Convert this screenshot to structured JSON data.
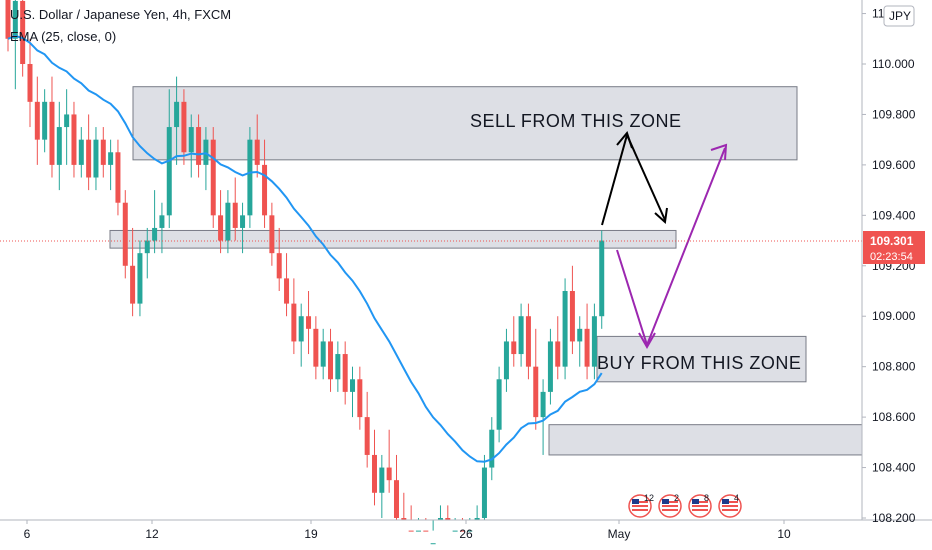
{
  "header": {
    "symbol_line": "U.S. Dollar / Japanese Yen, 4h, FXCM",
    "indicator_line": "EMA (25, close, 0)",
    "currency_badge": "JPY"
  },
  "price_tag": {
    "price": "109.301",
    "countdown": "02:23:54",
    "bg_color": "#ef5350"
  },
  "annotations": {
    "sell_label": "SELL FROM THIS ZONE",
    "buy_label": "BUY FROM THIS ZONE"
  },
  "event_markers": [
    "12",
    "2",
    "8",
    "4"
  ],
  "colors": {
    "up": "#26a69a",
    "down": "#ef5350",
    "ema": "#2196f3",
    "zone_fill": "#d1d4dc",
    "zone_stroke": "#787b86",
    "arrow_black": "#000000",
    "arrow_purple": "#9c27b0"
  },
  "chart_data": {
    "type": "candlestick",
    "title": "U.S. Dollar / Japanese Yen, 4h, FXCM",
    "ylim": [
      108.2,
      110.35
    ],
    "yticks": [
      108.2,
      108.4,
      108.6,
      108.8,
      109.0,
      109.2,
      109.4,
      109.6,
      109.8,
      110.0,
      110.2
    ],
    "ytick_labels": [
      "108.200",
      "108.400",
      "108.600",
      "108.800",
      "109.000",
      "109.200",
      "109.400",
      "109.600",
      "109.800",
      "110.000",
      "110.200"
    ],
    "xticks": [
      "6",
      "12",
      "19",
      "26",
      "May",
      "10"
    ],
    "last_price": 109.301,
    "ohlc": [
      [
        110.3,
        110.4,
        110.05,
        110.1
      ],
      [
        110.1,
        110.35,
        109.9,
        110.25
      ],
      [
        110.25,
        110.35,
        109.95,
        110.0
      ],
      [
        110.0,
        110.1,
        109.75,
        109.85
      ],
      [
        109.85,
        109.95,
        109.6,
        109.7
      ],
      [
        109.7,
        109.9,
        109.65,
        109.85
      ],
      [
        109.85,
        109.95,
        109.55,
        109.6
      ],
      [
        109.6,
        109.85,
        109.5,
        109.75
      ],
      [
        109.75,
        109.9,
        109.6,
        109.8
      ],
      [
        109.8,
        109.85,
        109.55,
        109.6
      ],
      [
        109.6,
        109.75,
        109.55,
        109.7
      ],
      [
        109.7,
        109.8,
        109.5,
        109.55
      ],
      [
        109.55,
        109.75,
        109.5,
        109.7
      ],
      [
        109.7,
        109.75,
        109.55,
        109.6
      ],
      [
        109.6,
        109.7,
        109.5,
        109.65
      ],
      [
        109.65,
        109.7,
        109.4,
        109.45
      ],
      [
        109.45,
        109.5,
        109.15,
        109.2
      ],
      [
        109.2,
        109.35,
        109.0,
        109.05
      ],
      [
        109.05,
        109.3,
        109.0,
        109.25
      ],
      [
        109.25,
        109.35,
        109.15,
        109.3
      ],
      [
        109.3,
        109.5,
        109.25,
        109.35
      ],
      [
        109.35,
        109.45,
        109.25,
        109.4
      ],
      [
        109.4,
        109.9,
        109.35,
        109.75
      ],
      [
        109.75,
        109.95,
        109.6,
        109.85
      ],
      [
        109.85,
        109.9,
        109.6,
        109.65
      ],
      [
        109.65,
        109.8,
        109.55,
        109.75
      ],
      [
        109.75,
        109.8,
        109.55,
        109.6
      ],
      [
        109.6,
        109.75,
        109.5,
        109.7
      ],
      [
        109.7,
        109.75,
        109.35,
        109.4
      ],
      [
        109.4,
        109.5,
        109.25,
        109.3
      ],
      [
        109.3,
        109.5,
        109.25,
        109.45
      ],
      [
        109.45,
        109.55,
        109.3,
        109.35
      ],
      [
        109.35,
        109.45,
        109.25,
        109.4
      ],
      [
        109.4,
        109.75,
        109.35,
        109.7
      ],
      [
        109.7,
        109.8,
        109.55,
        109.6
      ],
      [
        109.6,
        109.7,
        109.35,
        109.4
      ],
      [
        109.4,
        109.45,
        109.2,
        109.25
      ],
      [
        109.25,
        109.35,
        109.1,
        109.15
      ],
      [
        109.15,
        109.25,
        109.0,
        109.05
      ],
      [
        109.05,
        109.15,
        108.85,
        108.9
      ],
      [
        108.9,
        109.05,
        108.8,
        109.0
      ],
      [
        109.0,
        109.1,
        108.85,
        108.95
      ],
      [
        108.95,
        109.0,
        108.75,
        108.8
      ],
      [
        108.8,
        108.95,
        108.75,
        108.9
      ],
      [
        108.9,
        108.95,
        108.7,
        108.75
      ],
      [
        108.75,
        108.9,
        108.7,
        108.85
      ],
      [
        108.85,
        108.9,
        108.65,
        108.7
      ],
      [
        108.7,
        108.8,
        108.6,
        108.75
      ],
      [
        108.75,
        108.8,
        108.55,
        108.6
      ],
      [
        108.6,
        108.7,
        108.4,
        108.45
      ],
      [
        108.45,
        108.55,
        108.25,
        108.3
      ],
      [
        108.3,
        108.45,
        108.2,
        108.4
      ],
      [
        108.4,
        108.55,
        108.3,
        108.35
      ],
      [
        108.35,
        108.45,
        108.15,
        108.2
      ],
      [
        108.2,
        108.3,
        108.1,
        108.15
      ],
      [
        108.15,
        108.25,
        108.05,
        108.1
      ],
      [
        108.1,
        108.2,
        108.0,
        108.15
      ],
      [
        108.15,
        108.2,
        107.95,
        108.0
      ],
      [
        108.0,
        108.15,
        107.95,
        108.1
      ],
      [
        108.1,
        108.25,
        108.05,
        108.2
      ],
      [
        108.2,
        108.25,
        108.05,
        108.1
      ],
      [
        108.1,
        108.2,
        108.0,
        108.15
      ],
      [
        108.15,
        108.2,
        108.0,
        108.05
      ],
      [
        108.05,
        108.2,
        108.0,
        108.15
      ],
      [
        108.15,
        108.25,
        108.1,
        108.2
      ],
      [
        108.2,
        108.45,
        108.15,
        108.4
      ],
      [
        108.4,
        108.6,
        108.35,
        108.55
      ],
      [
        108.55,
        108.8,
        108.5,
        108.75
      ],
      [
        108.75,
        108.95,
        108.7,
        108.9
      ],
      [
        108.9,
        109.0,
        108.8,
        108.85
      ],
      [
        108.85,
        109.05,
        108.8,
        109.0
      ],
      [
        109.0,
        109.05,
        108.75,
        108.8
      ],
      [
        108.8,
        108.95,
        108.55,
        108.6
      ],
      [
        108.6,
        108.75,
        108.45,
        108.7
      ],
      [
        108.7,
        108.95,
        108.65,
        108.9
      ],
      [
        108.9,
        109.0,
        108.75,
        108.8
      ],
      [
        108.8,
        109.15,
        108.75,
        109.1
      ],
      [
        109.1,
        109.2,
        108.85,
        108.9
      ],
      [
        108.9,
        109.0,
        108.8,
        108.95
      ],
      [
        108.95,
        109.05,
        108.75,
        108.8
      ],
      [
        108.8,
        109.05,
        108.75,
        109.0
      ],
      [
        109.0,
        109.34,
        108.95,
        109.3
      ]
    ],
    "ema_period": 25,
    "zones": [
      {
        "label": "SELL FROM THIS ZONE",
        "low": 109.62,
        "high": 109.91
      },
      {
        "label": "",
        "low": 109.27,
        "high": 109.34
      },
      {
        "label": "BUY FROM THIS ZONE",
        "low": 108.74,
        "high": 108.92
      },
      {
        "label": "",
        "low": 108.45,
        "high": 108.57
      }
    ]
  }
}
